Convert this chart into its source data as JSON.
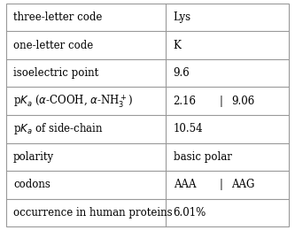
{
  "rows": [
    {
      "label": "three-letter code",
      "value": "Lys",
      "has_pipe": false
    },
    {
      "label": "one-letter code",
      "value": "K",
      "has_pipe": false
    },
    {
      "label": "isoelectric point",
      "value": "9.6",
      "has_pipe": false
    },
    {
      "label": "pka_alpha",
      "value_left": "2.16",
      "value_right": "9.06",
      "has_pipe": true
    },
    {
      "label": "pka_side",
      "value": "10.54",
      "has_pipe": false
    },
    {
      "label": "polarity",
      "value": "basic polar",
      "has_pipe": false
    },
    {
      "label": "codons",
      "value_left": "AAA",
      "value_right": "AAG",
      "has_pipe": true
    },
    {
      "label": "occurrence in human proteins",
      "value": "6.01%",
      "has_pipe": false
    }
  ],
  "col_split": 0.565,
  "background_color": "#ffffff",
  "border_color": "#999999",
  "text_color": "#000000",
  "font_size": 8.5
}
